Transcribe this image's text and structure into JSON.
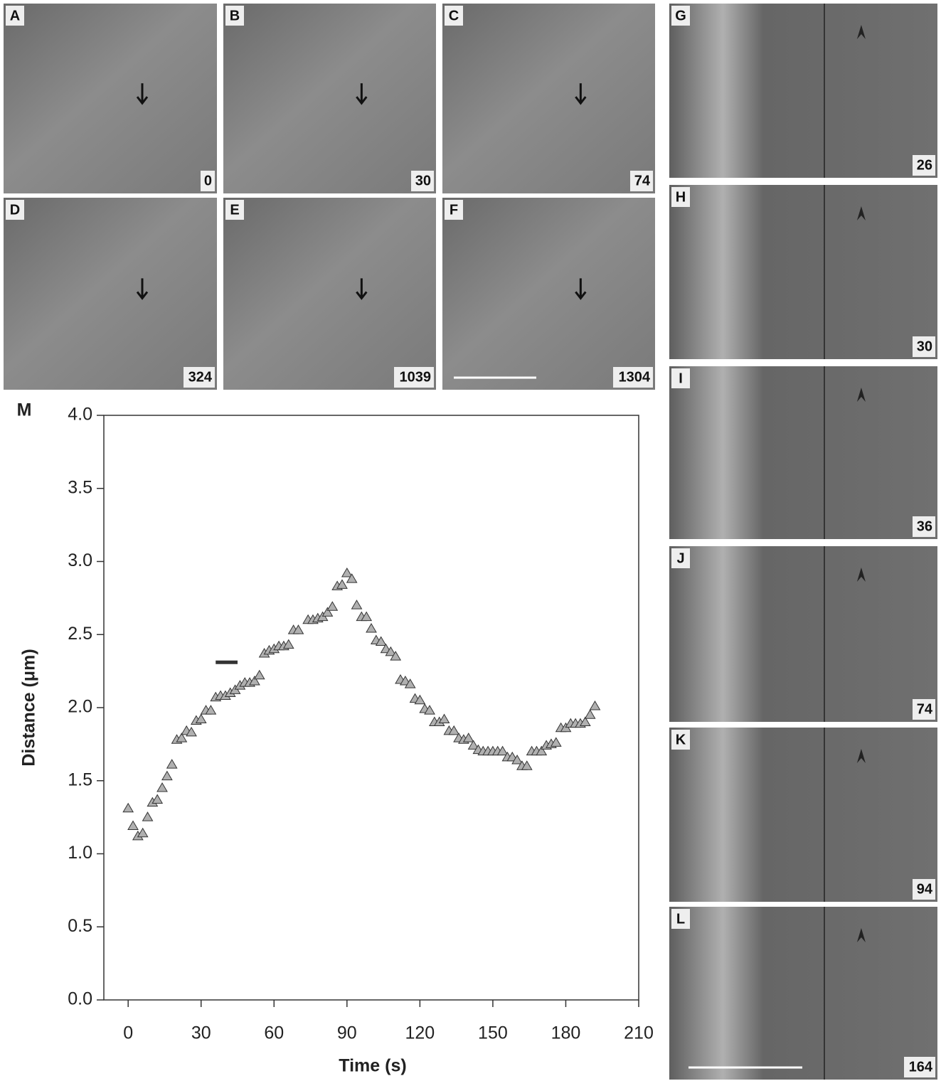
{
  "panels": [
    {
      "label": "A",
      "time": 0
    },
    {
      "label": "B",
      "time": 30
    },
    {
      "label": "C",
      "time": 74
    },
    {
      "label": "D",
      "time": 324
    },
    {
      "label": "E",
      "time": 1039
    },
    {
      "label": "F",
      "time": 1304
    },
    {
      "label": "G",
      "time": 26
    },
    {
      "label": "H",
      "time": 30
    },
    {
      "label": "I",
      "time": 36
    },
    {
      "label": "J",
      "time": 74
    },
    {
      "label": "K",
      "time": 94
    },
    {
      "label": "L",
      "time": 164
    }
  ],
  "chart_data": {
    "type": "scatter",
    "panel_label": "M",
    "x_label": "Time (s)",
    "y_label": "Distance (μm)",
    "x": [
      0,
      2,
      4,
      6,
      8,
      10,
      12,
      14,
      16,
      18,
      20,
      22,
      24,
      26,
      28,
      30,
      32,
      34,
      36,
      38,
      40,
      42,
      44,
      46,
      48,
      50,
      52,
      54,
      56,
      58,
      60,
      62,
      64,
      66,
      68,
      70,
      74,
      76,
      78,
      80,
      82,
      84,
      86,
      88,
      90,
      92,
      94,
      96,
      98,
      100,
      102,
      104,
      106,
      108,
      110,
      112,
      114,
      116,
      118,
      120,
      122,
      124,
      126,
      128,
      130,
      132,
      134,
      136,
      138,
      140,
      142,
      144,
      146,
      148,
      150,
      152,
      154,
      156,
      158,
      160,
      162,
      164,
      166,
      168,
      170,
      172,
      174,
      176,
      178,
      180,
      182,
      184,
      186,
      188,
      190,
      192
    ],
    "values": [
      1.31,
      1.19,
      1.12,
      1.14,
      1.25,
      1.35,
      1.37,
      1.45,
      1.53,
      1.61,
      1.78,
      1.79,
      1.84,
      1.83,
      1.91,
      1.92,
      1.98,
      1.98,
      2.07,
      2.08,
      2.08,
      2.1,
      2.12,
      2.15,
      2.17,
      2.17,
      2.18,
      2.22,
      2.37,
      2.39,
      2.4,
      2.42,
      2.42,
      2.43,
      2.53,
      2.53,
      2.6,
      2.6,
      2.61,
      2.62,
      2.65,
      2.69,
      2.83,
      2.84,
      2.92,
      2.88,
      2.7,
      2.62,
      2.62,
      2.54,
      2.46,
      2.45,
      2.4,
      2.38,
      2.35,
      2.19,
      2.18,
      2.16,
      2.06,
      2.05,
      1.99,
      1.98,
      1.9,
      1.9,
      1.92,
      1.84,
      1.84,
      1.79,
      1.78,
      1.79,
      1.74,
      1.71,
      1.7,
      1.7,
      1.7,
      1.7,
      1.7,
      1.66,
      1.66,
      1.64,
      1.6,
      1.6,
      1.7,
      1.7,
      1.7,
      1.74,
      1.75,
      1.76,
      1.86,
      1.86,
      1.89,
      1.89,
      1.89,
      1.9,
      1.95,
      2.01
    ],
    "color": "#b0b0b0",
    "segment": {
      "x": [
        36,
        45
      ],
      "y": 2.31
    },
    "xlim": [
      -10,
      210
    ],
    "ylim": [
      0,
      4
    ],
    "xticks": [
      0,
      30,
      60,
      90,
      120,
      150,
      180,
      210
    ],
    "yticks": [
      {
        "value": 0,
        "label": "0.0"
      },
      {
        "value": 0.5,
        "label": "0.5"
      },
      {
        "value": 1,
        "label": "1.0"
      },
      {
        "value": 1.5,
        "label": "1.5"
      },
      {
        "value": 2,
        "label": "2.0"
      },
      {
        "value": 2.5,
        "label": "2.5"
      },
      {
        "value": 3,
        "label": "3.0"
      },
      {
        "value": 3.5,
        "label": "3.5"
      },
      {
        "value": 4,
        "label": "4.0"
      }
    ]
  }
}
